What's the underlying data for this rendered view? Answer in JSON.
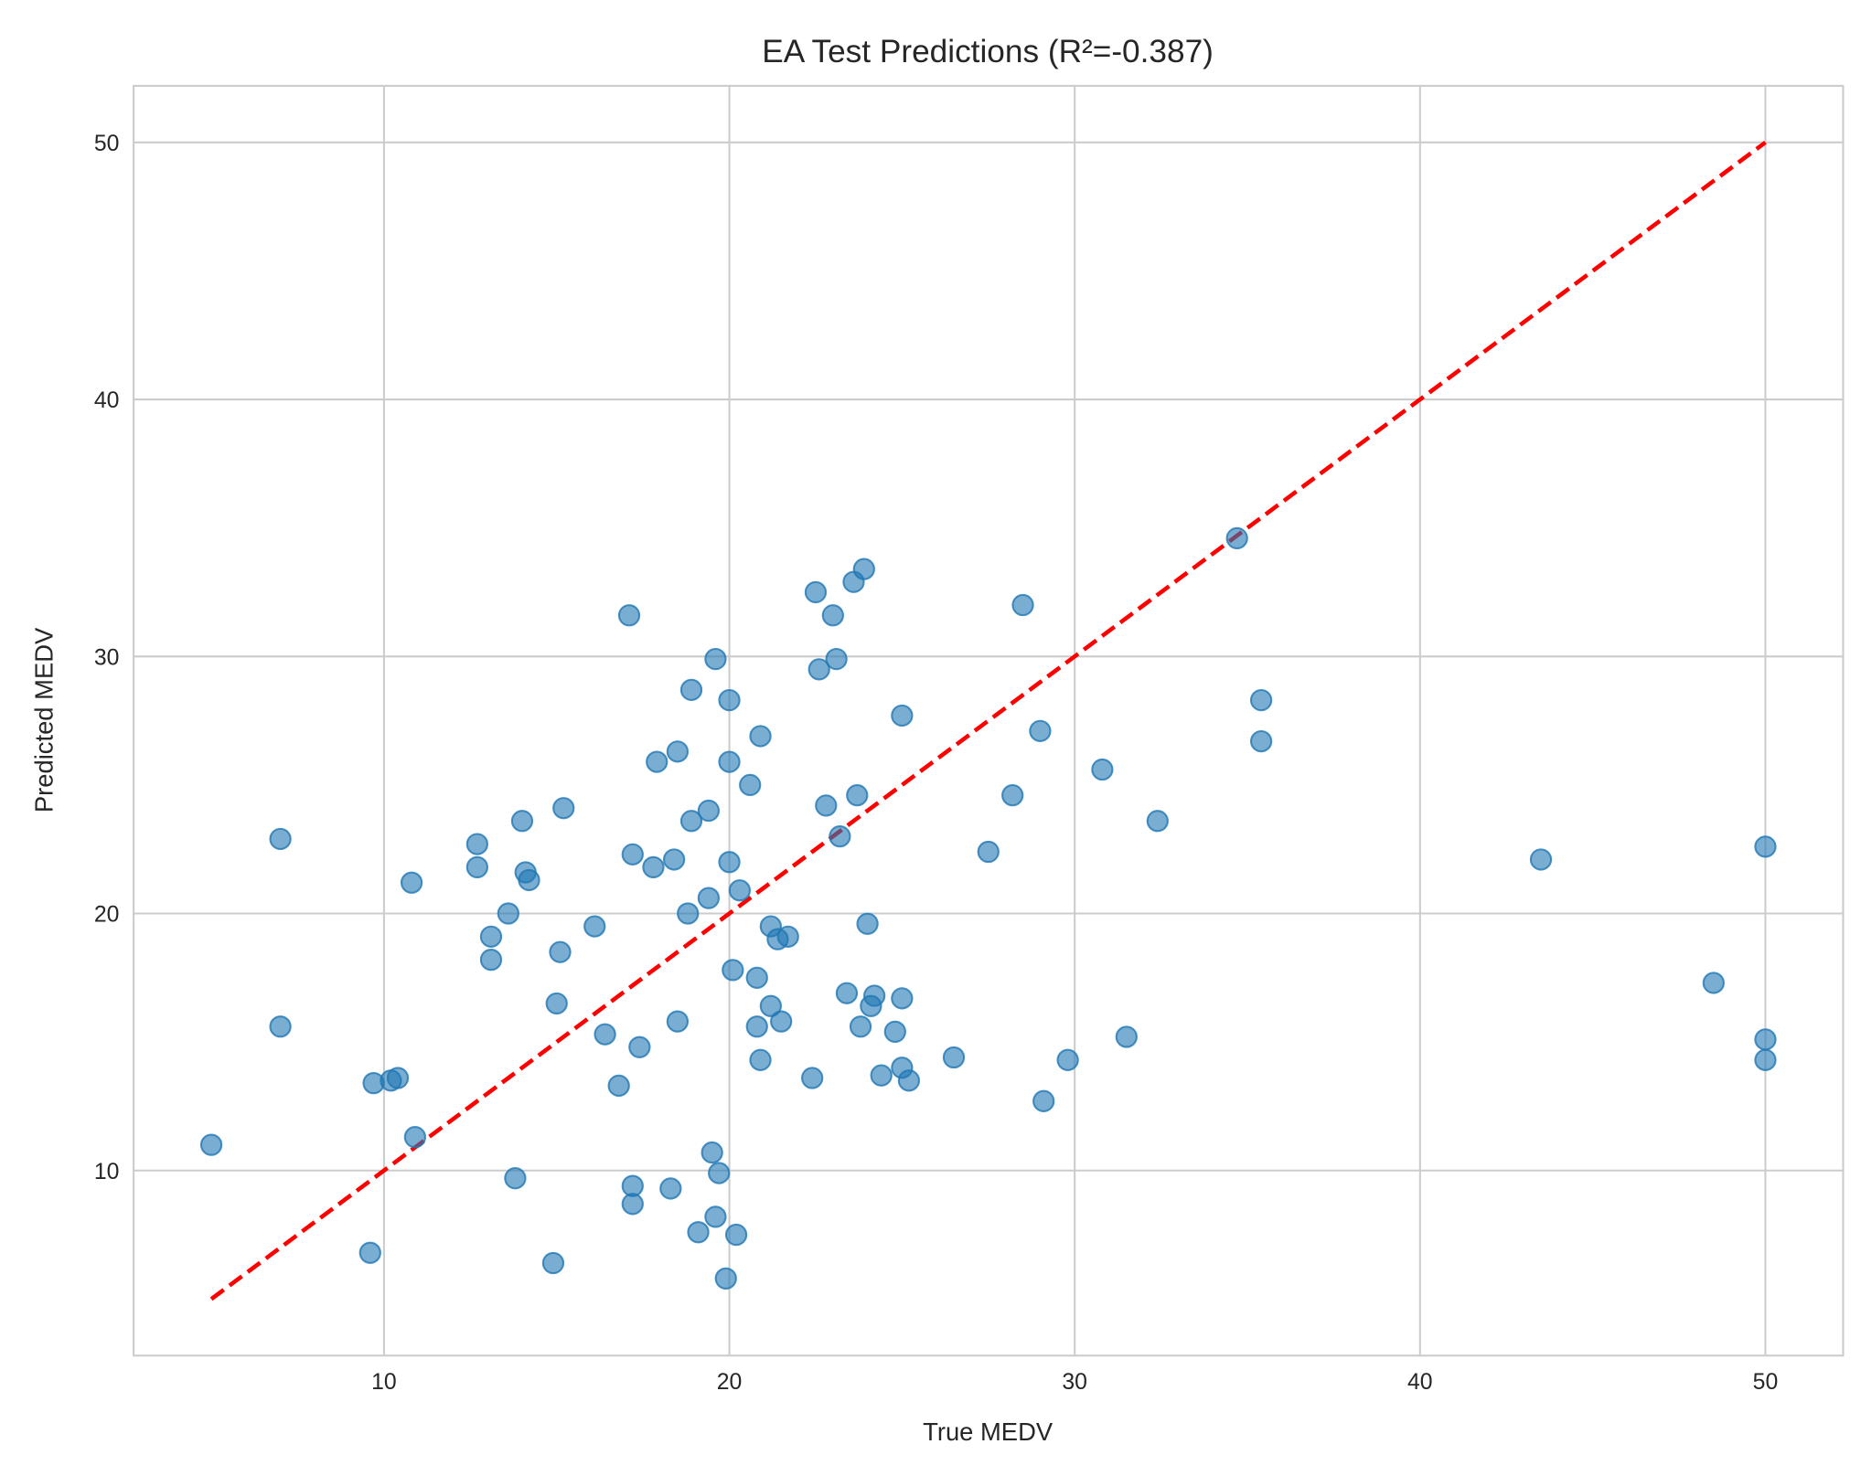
{
  "chart_data": {
    "type": "scatter",
    "title": "EA Test Predictions (R²=-0.387)",
    "xlabel": "True MEDV",
    "ylabel": "Predicted MEDV",
    "xlim": [
      2.75,
      52.25
    ],
    "ylim": [
      2.8,
      52.2
    ],
    "xticks": [
      10,
      20,
      30,
      40,
      50
    ],
    "yticks": [
      10,
      20,
      30,
      40,
      50
    ],
    "grid": true,
    "point_color": "#1f77b4",
    "point_alpha": 0.6,
    "reference_line": {
      "style": "dashed",
      "color": "#ff0000",
      "from": [
        5.0,
        5.0
      ],
      "to": [
        50.0,
        50.0
      ]
    },
    "points": [
      [
        5.0,
        11.0
      ],
      [
        7.0,
        22.9
      ],
      [
        7.0,
        15.6
      ],
      [
        9.6,
        6.8
      ],
      [
        9.7,
        13.4
      ],
      [
        10.2,
        13.5
      ],
      [
        10.4,
        13.6
      ],
      [
        10.8,
        21.2
      ],
      [
        10.9,
        11.3
      ],
      [
        12.7,
        22.7
      ],
      [
        12.7,
        21.8
      ],
      [
        13.1,
        19.1
      ],
      [
        13.1,
        18.2
      ],
      [
        13.6,
        20.0
      ],
      [
        13.8,
        9.7
      ],
      [
        14.0,
        23.6
      ],
      [
        14.1,
        21.6
      ],
      [
        14.2,
        21.3
      ],
      [
        14.9,
        6.4
      ],
      [
        15.0,
        16.5
      ],
      [
        15.1,
        18.5
      ],
      [
        15.2,
        24.1
      ],
      [
        16.1,
        19.5
      ],
      [
        16.4,
        15.3
      ],
      [
        16.8,
        13.3
      ],
      [
        17.1,
        31.6
      ],
      [
        17.2,
        22.3
      ],
      [
        17.2,
        9.4
      ],
      [
        17.2,
        8.7
      ],
      [
        17.4,
        14.8
      ],
      [
        17.8,
        21.8
      ],
      [
        17.9,
        25.9
      ],
      [
        18.3,
        9.3
      ],
      [
        18.4,
        22.1
      ],
      [
        18.5,
        26.3
      ],
      [
        18.5,
        15.8
      ],
      [
        18.8,
        20.0
      ],
      [
        18.9,
        23.6
      ],
      [
        18.9,
        28.7
      ],
      [
        19.1,
        7.6
      ],
      [
        19.4,
        24.0
      ],
      [
        19.4,
        20.6
      ],
      [
        19.5,
        10.7
      ],
      [
        19.6,
        29.9
      ],
      [
        19.6,
        8.2
      ],
      [
        19.7,
        9.9
      ],
      [
        19.9,
        5.8
      ],
      [
        20.0,
        28.3
      ],
      [
        20.0,
        25.9
      ],
      [
        20.0,
        22.0
      ],
      [
        20.1,
        17.8
      ],
      [
        20.2,
        7.5
      ],
      [
        20.3,
        20.9
      ],
      [
        20.6,
        25.0
      ],
      [
        20.8,
        17.5
      ],
      [
        20.8,
        15.6
      ],
      [
        20.9,
        26.9
      ],
      [
        20.9,
        14.3
      ],
      [
        21.2,
        19.5
      ],
      [
        21.2,
        16.4
      ],
      [
        21.4,
        19.0
      ],
      [
        21.5,
        15.8
      ],
      [
        21.7,
        19.1
      ],
      [
        22.4,
        13.6
      ],
      [
        22.5,
        32.5
      ],
      [
        22.6,
        29.5
      ],
      [
        22.8,
        24.2
      ],
      [
        23.0,
        31.6
      ],
      [
        23.1,
        29.9
      ],
      [
        23.2,
        23.0
      ],
      [
        23.4,
        16.9
      ],
      [
        23.6,
        32.9
      ],
      [
        23.7,
        24.6
      ],
      [
        23.8,
        15.6
      ],
      [
        23.9,
        33.4
      ],
      [
        24.0,
        19.6
      ],
      [
        24.1,
        16.4
      ],
      [
        24.2,
        16.8
      ],
      [
        24.4,
        13.7
      ],
      [
        24.8,
        15.4
      ],
      [
        25.0,
        27.7
      ],
      [
        25.0,
        16.7
      ],
      [
        25.0,
        14.0
      ],
      [
        25.2,
        13.5
      ],
      [
        26.5,
        14.4
      ],
      [
        27.5,
        22.4
      ],
      [
        28.2,
        24.6
      ],
      [
        28.5,
        32.0
      ],
      [
        29.0,
        27.1
      ],
      [
        29.1,
        12.7
      ],
      [
        29.8,
        14.3
      ],
      [
        30.8,
        25.6
      ],
      [
        31.5,
        15.2
      ],
      [
        32.4,
        23.6
      ],
      [
        34.7,
        34.6
      ],
      [
        35.4,
        28.3
      ],
      [
        35.4,
        26.7
      ],
      [
        43.5,
        22.1
      ],
      [
        48.5,
        17.3
      ],
      [
        50.0,
        22.6
      ],
      [
        50.0,
        15.1
      ],
      [
        50.0,
        14.3
      ]
    ]
  }
}
